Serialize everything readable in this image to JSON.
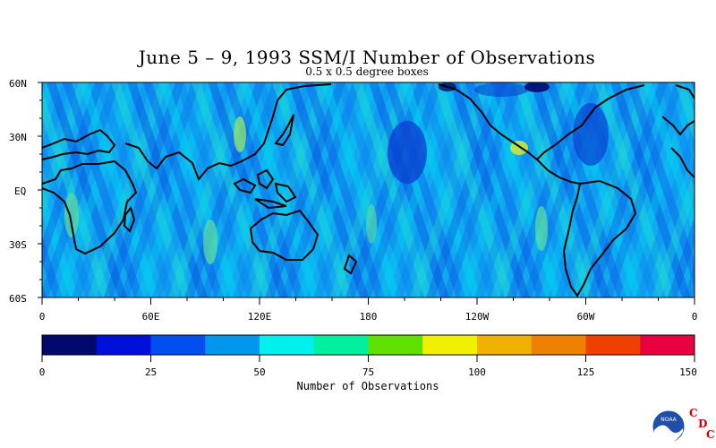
{
  "map": {
    "title": "June 5 – 9, 1993 SSM/I Number of Observations",
    "subtitle": "0.5 x 0.5 degree boxes",
    "lat_labels": [
      "60N",
      "30N",
      "EQ",
      "30S",
      "60S"
    ],
    "lon_labels": [
      "0",
      "60E",
      "120E",
      "180",
      "120W",
      "60W",
      "0"
    ],
    "lat_range": [
      -60,
      60
    ],
    "lon_range": [
      0,
      360
    ],
    "projection": "equirectangular"
  },
  "colorbar": {
    "label": "Number of Observations",
    "tick_labels": [
      "0",
      "25",
      "50",
      "75",
      "100",
      "125",
      "150"
    ],
    "range": [
      0,
      150
    ],
    "colors": [
      "#000a6e",
      "#0010d8",
      "#0050f0",
      "#0096f0",
      "#00f0f0",
      "#00f0a0",
      "#60e000",
      "#f0f000",
      "#f0b000",
      "#f08000",
      "#f04000",
      "#e80040"
    ]
  },
  "logo": {
    "name": "noaa-logo",
    "text": "NOAA",
    "letters": [
      "C",
      "D",
      "C"
    ]
  }
}
